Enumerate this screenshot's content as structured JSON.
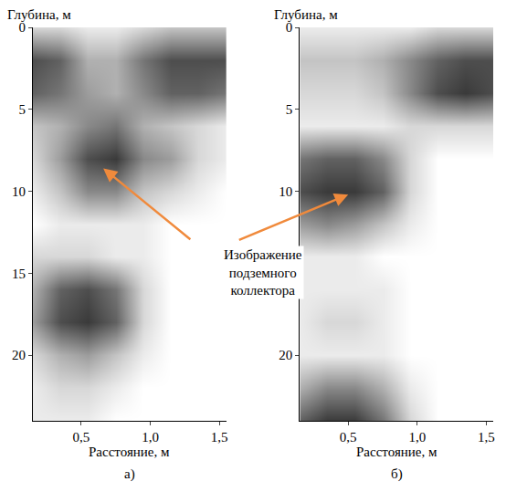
{
  "chart_data": [
    {
      "type": "heatmap",
      "panel": "а)",
      "x_label": "Расстояние, м",
      "y_label": "Глубина, м",
      "colors": [
        "#ffffff",
        "#3a3a3a"
      ],
      "zlim": [
        0,
        1
      ],
      "xlim": [
        0.15,
        1.55
      ],
      "ylim": [
        0,
        24
      ],
      "xticks": [
        {
          "value": 0.5,
          "label": "0,5"
        },
        {
          "value": 1.0,
          "label": "1,0"
        },
        {
          "value": 1.5,
          "label": "1,5"
        }
      ],
      "yticks": [
        0,
        5,
        10,
        15,
        20
      ],
      "x": [
        0.15,
        0.35,
        0.55,
        0.75,
        0.95,
        1.15,
        1.35,
        1.55
      ],
      "y": [
        0,
        2,
        4,
        6,
        8,
        10,
        12,
        14,
        16,
        18,
        20,
        22,
        24
      ],
      "z": [
        [
          0.2,
          0.2,
          0.1,
          0.1,
          0.2,
          0.3,
          0.3,
          0.3
        ],
        [
          0.9,
          0.8,
          0.4,
          0.4,
          0.7,
          0.9,
          0.9,
          0.9
        ],
        [
          0.8,
          0.7,
          0.5,
          0.4,
          0.6,
          0.8,
          0.8,
          0.7
        ],
        [
          0.3,
          0.4,
          0.6,
          0.7,
          0.4,
          0.3,
          0.2,
          0.1
        ],
        [
          0.2,
          0.5,
          0.9,
          1.0,
          0.6,
          0.5,
          0.2,
          0.1
        ],
        [
          0.1,
          0.3,
          0.6,
          0.6,
          0.3,
          0.2,
          0.1,
          0.0
        ],
        [
          0.0,
          0.1,
          0.1,
          0.1,
          0.1,
          0.0,
          0.0,
          0.0
        ],
        [
          0.2,
          0.2,
          0.2,
          0.1,
          0.1,
          0.0,
          0.0,
          0.0
        ],
        [
          0.4,
          0.8,
          0.9,
          0.7,
          0.2,
          0.0,
          0.0,
          0.0
        ],
        [
          0.5,
          0.9,
          1.0,
          0.8,
          0.2,
          0.0,
          0.0,
          0.0
        ],
        [
          0.2,
          0.4,
          0.5,
          0.3,
          0.1,
          0.0,
          0.0,
          0.0
        ],
        [
          0.1,
          0.2,
          0.2,
          0.1,
          0.0,
          0.0,
          0.0,
          0.0
        ],
        [
          0.1,
          0.1,
          0.1,
          0.0,
          0.0,
          0.0,
          0.0,
          0.0
        ]
      ]
    },
    {
      "type": "heatmap",
      "panel": "б)",
      "x_label": "Расстояние, м",
      "y_label": "Глубина, м",
      "colors": [
        "#ffffff",
        "#3a3a3a"
      ],
      "zlim": [
        0,
        1
      ],
      "xlim": [
        0.15,
        1.55
      ],
      "ylim": [
        0,
        24
      ],
      "xticks": [
        {
          "value": 0.5,
          "label": "0,5"
        },
        {
          "value": 1.0,
          "label": "1,0"
        },
        {
          "value": 1.5,
          "label": "1,5"
        }
      ],
      "yticks": [
        0,
        5,
        10,
        15,
        20
      ],
      "x": [
        0.15,
        0.35,
        0.55,
        0.75,
        0.95,
        1.15,
        1.35,
        1.55
      ],
      "y": [
        0,
        2,
        4,
        6,
        8,
        10,
        12,
        14,
        16,
        18,
        20,
        22,
        24
      ],
      "z": [
        [
          0.1,
          0.1,
          0.1,
          0.1,
          0.1,
          0.2,
          0.2,
          0.2
        ],
        [
          0.3,
          0.3,
          0.3,
          0.4,
          0.6,
          0.8,
          0.9,
          0.9
        ],
        [
          0.2,
          0.2,
          0.2,
          0.3,
          0.6,
          0.9,
          1.0,
          0.9
        ],
        [
          0.1,
          0.1,
          0.1,
          0.1,
          0.2,
          0.2,
          0.2,
          0.2
        ],
        [
          0.7,
          0.8,
          0.8,
          0.6,
          0.2,
          0.0,
          0.0,
          0.0
        ],
        [
          0.9,
          1.0,
          1.0,
          0.8,
          0.2,
          0.0,
          0.0,
          0.0
        ],
        [
          0.5,
          0.6,
          0.5,
          0.3,
          0.1,
          0.0,
          0.0,
          0.0
        ],
        [
          0.1,
          0.1,
          0.1,
          0.0,
          0.0,
          0.0,
          0.0,
          0.0
        ],
        [
          0.1,
          0.1,
          0.1,
          0.1,
          0.0,
          0.0,
          0.0,
          0.0
        ],
        [
          0.1,
          0.2,
          0.2,
          0.1,
          0.0,
          0.0,
          0.0,
          0.0
        ],
        [
          0.1,
          0.1,
          0.1,
          0.1,
          0.0,
          0.0,
          0.0,
          0.0
        ],
        [
          0.4,
          0.6,
          0.6,
          0.4,
          0.1,
          0.0,
          0.0,
          0.0
        ],
        [
          0.8,
          1.0,
          1.0,
          0.7,
          0.2,
          0.0,
          0.0,
          0.0
        ]
      ]
    }
  ],
  "annotation": {
    "lines": [
      "Изображение",
      "подземного",
      "коллектора"
    ]
  }
}
